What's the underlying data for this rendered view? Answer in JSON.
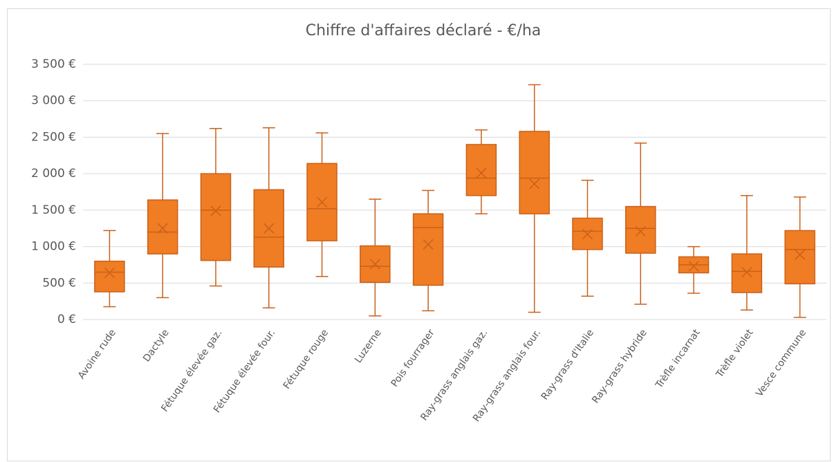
{
  "chart_data": {
    "type": "box",
    "title": "Chiffre d'affaires déclaré - €/ha",
    "categories": [
      "Avoine rude",
      "Dactyle",
      "Fétuque élevée gaz.",
      "Fétuque élevée four.",
      "Fétuque rouge",
      "Luzerne",
      "Pois fourrager",
      "Ray-grass anglais gaz.",
      "Ray-grass anglais four.",
      "Ray-grass d'Italie",
      "Ray-grass hybride",
      "Trèfle incarnat",
      "Trèfle violet",
      "Vesce commune"
    ],
    "min": [
      175,
      300,
      460,
      160,
      590,
      50,
      120,
      1450,
      100,
      320,
      210,
      360,
      130,
      30
    ],
    "q1": [
      380,
      900,
      810,
      720,
      1080,
      510,
      470,
      1700,
      1450,
      960,
      910,
      640,
      370,
      490
    ],
    "median": [
      650,
      1200,
      1500,
      1130,
      1520,
      730,
      1260,
      1940,
      1940,
      1210,
      1250,
      750,
      660,
      960
    ],
    "q3": [
      800,
      1640,
      2000,
      1780,
      2140,
      1010,
      1450,
      2400,
      2580,
      1390,
      1550,
      860,
      900,
      1220
    ],
    "max": [
      1220,
      2550,
      2620,
      2630,
      2560,
      1650,
      1770,
      2600,
      3220,
      1910,
      2420,
      1000,
      1700,
      1680
    ],
    "mean": [
      640,
      1250,
      1490,
      1250,
      1610,
      760,
      1030,
      2010,
      1860,
      1170,
      1210,
      730,
      650,
      890
    ],
    "color": "#f07d23",
    "edge_color": "#c9601a",
    "ylim": [
      0,
      3500
    ],
    "yticks": [
      {
        "value": 0,
        "label": "0 €"
      },
      {
        "value": 500,
        "label": "500 €"
      },
      {
        "value": 1000,
        "label": "1 000 €"
      },
      {
        "value": 1500,
        "label": "1 500 €"
      },
      {
        "value": 2000,
        "label": "2 000 €"
      },
      {
        "value": 2500,
        "label": "2 500 €"
      },
      {
        "value": 3000,
        "label": "3 000 €"
      },
      {
        "value": 3500,
        "label": "3 500 €"
      }
    ],
    "grid": true
  }
}
